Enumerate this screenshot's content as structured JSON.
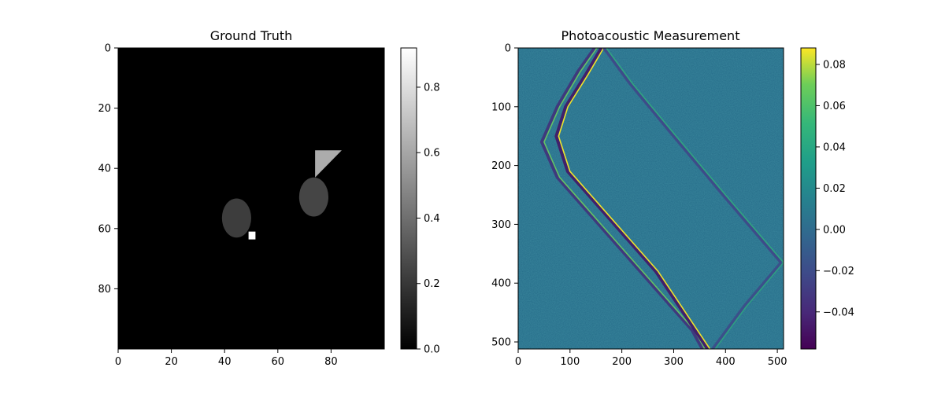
{
  "chart_data": [
    {
      "type": "heatmap",
      "title": "Ground Truth",
      "colormap": "gray",
      "xlim": [
        0,
        100
      ],
      "ylim": [
        100,
        0
      ],
      "xticks": [
        "0",
        "20",
        "40",
        "60",
        "80"
      ],
      "yticks": [
        "0",
        "20",
        "40",
        "60",
        "80"
      ],
      "colorbar": {
        "range": [
          0,
          0.92
        ],
        "ticks": [
          "0.0",
          "0.2",
          "0.4",
          "0.6",
          "0.8"
        ]
      },
      "background_value": 0,
      "shapes": [
        {
          "kind": "ellipse",
          "center": [
            44.5,
            56.5
          ],
          "radii": [
            5.5,
            6.5
          ],
          "value": 0.22
        },
        {
          "kind": "ellipse",
          "center": [
            73.5,
            49.5
          ],
          "radii": [
            5.5,
            6.5
          ],
          "value": 0.25
        },
        {
          "kind": "triangle",
          "points": [
            [
              74,
              34
            ],
            [
              84,
              34
            ],
            [
              74,
              43
            ]
          ],
          "value": 0.62
        },
        {
          "kind": "square",
          "origin": [
            49,
            61
          ],
          "size": 2.6,
          "value": 0.92
        }
      ]
    },
    {
      "type": "heatmap",
      "title": "Photoacoustic Measurement",
      "colormap": "viridis",
      "xlim": [
        0,
        512
      ],
      "ylim": [
        512,
        0
      ],
      "xticks": [
        "0",
        "100",
        "200",
        "300",
        "400",
        "500"
      ],
      "yticks": [
        "0",
        "100",
        "200",
        "300",
        "400",
        "500"
      ],
      "colorbar": {
        "range": [
          -0.058,
          0.088
        ],
        "ticks": [
          "−0.04",
          "−0.02",
          "0.00",
          "0.02",
          "0.04",
          "0.06",
          "0.08"
        ]
      },
      "background_value": 0,
      "wavefronts": [
        {
          "points": [
            [
              152,
              0
            ],
            [
              120,
              40
            ],
            [
              80,
              100
            ],
            [
              50,
              160
            ],
            [
              80,
              220
            ],
            [
              150,
              290
            ],
            [
              250,
              390
            ],
            [
              340,
              480
            ],
            [
              360,
              512
            ]
          ],
          "amplitude": 0.06
        },
        {
          "points": [
            [
              165,
              0
            ],
            [
              135,
              45
            ],
            [
              96,
              100
            ],
            [
              78,
              150
            ],
            [
              100,
              210
            ],
            [
              170,
              280
            ],
            [
              270,
              380
            ],
            [
              370,
              512
            ]
          ],
          "amplitude": 0.085
        },
        {
          "points": [
            [
              170,
              0
            ],
            [
              220,
              60
            ],
            [
              300,
              145
            ],
            [
              400,
              250
            ],
            [
              512,
              365
            ]
          ],
          "amplitude": 0.04
        },
        {
          "points": [
            [
              512,
              365
            ],
            [
              440,
              440
            ],
            [
              380,
              512
            ]
          ],
          "amplitude": 0.035
        }
      ]
    }
  ]
}
